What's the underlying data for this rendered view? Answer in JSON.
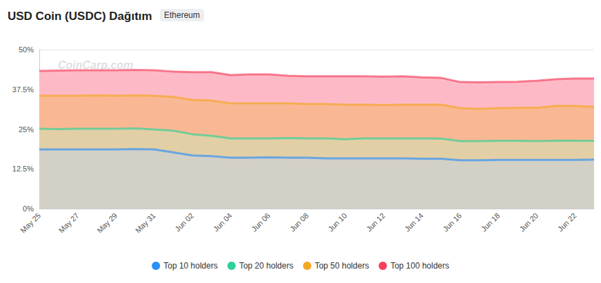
{
  "chart_data": {
    "type": "area",
    "title": "USD Coin (USDC) Dağıtım",
    "subtitle": "Ethereum",
    "annotations": [
      "CoinCarp.com"
    ],
    "categories": [
      "May 25",
      null,
      "May 27",
      null,
      "May 29",
      null,
      "May 31",
      null,
      "Jun 02",
      null,
      "Jun 04",
      null,
      "Jun 06",
      null,
      "Jun 08",
      null,
      "Jun 10",
      null,
      "Jun 12",
      null,
      "Jun 14",
      null,
      "Jun 16",
      null,
      "Jun 18",
      null,
      "Jun 20",
      null,
      "Jun 22",
      null
    ],
    "series": [
      {
        "name": "Top 10 holders",
        "color": "#2a8ff7",
        "values": [
          18.6,
          18.6,
          18.6,
          18.6,
          18.6,
          18.7,
          18.6,
          17.7,
          16.7,
          16.5,
          16.0,
          16.0,
          16.1,
          16.0,
          16.0,
          15.8,
          15.8,
          15.8,
          15.8,
          15.8,
          15.7,
          15.7,
          15.2,
          15.2,
          15.3,
          15.3,
          15.3,
          15.3,
          15.3,
          15.4
        ]
      },
      {
        "name": "Top 20 holders",
        "color": "#2ed197",
        "values": [
          25.1,
          25.0,
          25.1,
          25.1,
          25.1,
          25.2,
          24.9,
          24.5,
          23.4,
          22.9,
          22.1,
          22.1,
          22.1,
          22.2,
          22.1,
          22.1,
          21.8,
          22.1,
          22.1,
          22.1,
          22.1,
          22.0,
          21.2,
          21.2,
          21.3,
          21.3,
          21.2,
          21.4,
          21.3,
          21.3
        ]
      },
      {
        "name": "Top 50 holders",
        "color": "#f5a623",
        "values": [
          35.5,
          35.5,
          35.5,
          35.6,
          35.5,
          35.6,
          35.5,
          35.1,
          34.2,
          34.0,
          33.1,
          33.1,
          33.1,
          33.1,
          32.9,
          32.9,
          32.7,
          32.7,
          32.6,
          32.7,
          32.7,
          32.7,
          31.6,
          31.4,
          31.6,
          31.7,
          31.7,
          32.3,
          32.3,
          32.0
        ]
      },
      {
        "name": "Top 100 holders",
        "color": "#f5405e",
        "values": [
          43.3,
          43.4,
          43.5,
          43.5,
          43.5,
          43.6,
          43.5,
          43.1,
          42.9,
          42.9,
          42.0,
          42.2,
          42.2,
          41.8,
          41.6,
          41.6,
          41.6,
          41.6,
          41.5,
          41.6,
          41.3,
          41.1,
          39.8,
          39.7,
          39.8,
          39.9,
          40.2,
          40.7,
          40.9,
          40.9
        ]
      }
    ],
    "ylim": [
      0,
      50
    ],
    "yticks": [
      {
        "value": 0,
        "label": "0%"
      },
      {
        "value": 12.5,
        "label": "12.5%"
      },
      {
        "value": 25,
        "label": "25%"
      },
      {
        "value": 37.5,
        "label": "37.5%"
      },
      {
        "value": 50,
        "label": "50%"
      }
    ],
    "grid": true,
    "legend": "bottom"
  }
}
